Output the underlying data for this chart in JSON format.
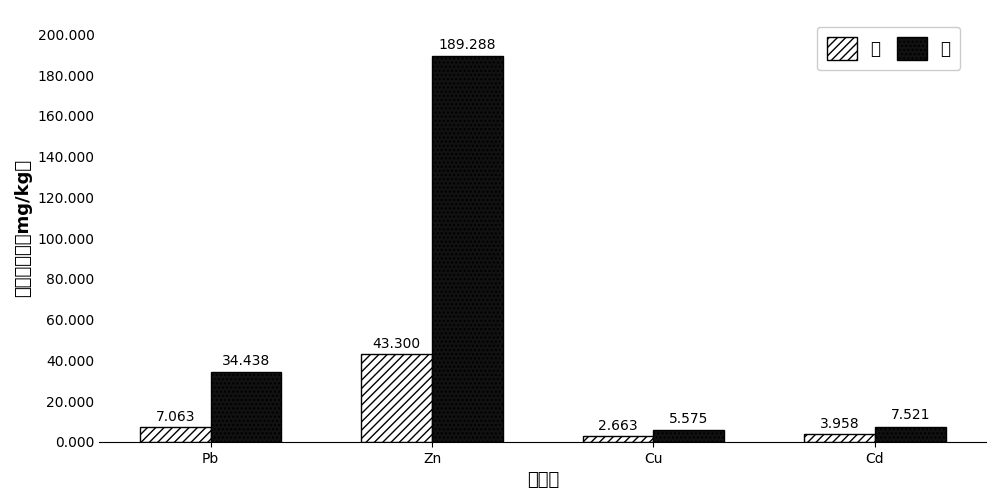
{
  "categories": [
    "Pb",
    "Zn",
    "Cu",
    "Cd"
  ],
  "stem_values": [
    7.063,
    43.3,
    2.663,
    3.958
  ],
  "leaf_values": [
    34.438,
    189.288,
    5.575,
    7.521
  ],
  "stem_label": "茎",
  "leaf_label": "叶",
  "xlabel": "重金属",
  "ylabel": "重金属含量（mg/kg）",
  "ylim": [
    0,
    210
  ],
  "yticks": [
    0.0,
    20.0,
    40.0,
    60.0,
    80.0,
    100.0,
    120.0,
    140.0,
    160.0,
    180.0,
    200.0
  ],
  "bar_width": 0.32,
  "background_color": "#ffffff",
  "stem_hatch": "////",
  "leaf_hatch": "....",
  "bar_edge_color": "#000000",
  "stem_face_color": "#ffffff",
  "leaf_face_color": "#111111",
  "annotation_fontsize": 10,
  "axis_label_fontsize": 13,
  "tick_fontsize": 10,
  "legend_fontsize": 12
}
